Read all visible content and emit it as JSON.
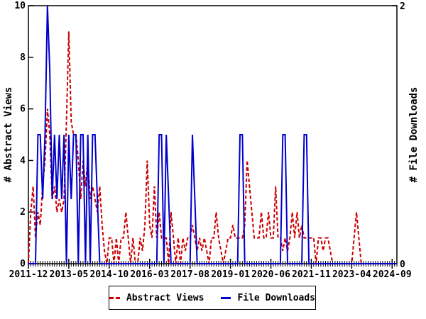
{
  "chart_data": {
    "type": "line",
    "title": "",
    "x_start_month": "2011-12",
    "x_end_month": "2024-12",
    "x_tick_labels": [
      "2011-12",
      "2013-05",
      "2014-10",
      "2016-03",
      "2017-08",
      "2019-01",
      "2020-06",
      "2021-11",
      "2023-04",
      "2024-09"
    ],
    "x_tick_month_indices": [
      0,
      17,
      34,
      51,
      68,
      85,
      102,
      119,
      136,
      153
    ],
    "ylabel_left": "# Abstract Views",
    "ylabel_right": "# File Downloads",
    "ylim_left": [
      0,
      10
    ],
    "ylim_right": [
      0,
      2
    ],
    "y_left_ticks": [
      0,
      2,
      4,
      6,
      8,
      10
    ],
    "y_right_ticks": [
      0,
      2
    ],
    "grid": false,
    "legend_position": "bottom-center",
    "series": [
      {
        "name": "Abstract Views",
        "axis": "left",
        "color": "#cc0000",
        "style": "dashed",
        "values": [
          0,
          2,
          3,
          1,
          2,
          1.5,
          3,
          4,
          6,
          5,
          2.5,
          3,
          2,
          2.5,
          2,
          2.5,
          5.5,
          9,
          5.5,
          5,
          5,
          4,
          2.5,
          4,
          3,
          4,
          2.5,
          3,
          2.5,
          2,
          3,
          1.5,
          0.5,
          0,
          1,
          1,
          0,
          1,
          0,
          1,
          1,
          2,
          1,
          0,
          1,
          0,
          0,
          1,
          0.5,
          1.5,
          4,
          1.5,
          1,
          3,
          1,
          2,
          1,
          1,
          1,
          0,
          2,
          1,
          0,
          1,
          0,
          1,
          0.5,
          1,
          1,
          1.5,
          1,
          0.5,
          1,
          0.5,
          1,
          0.5,
          0,
          1,
          1,
          2,
          1,
          0.5,
          0,
          0.5,
          1,
          1,
          1.5,
          1,
          1,
          1,
          1,
          1.5,
          4,
          3,
          2,
          1,
          1,
          1,
          2,
          1,
          1,
          2,
          1,
          1,
          3,
          1,
          1,
          0.5,
          1,
          0.5,
          1,
          2,
          1,
          2,
          1,
          1.5,
          1,
          1,
          1,
          1,
          1,
          0,
          1,
          1,
          0.5,
          1,
          1,
          0.5,
          0,
          0,
          0,
          0,
          0,
          0,
          0,
          0,
          0,
          1,
          2,
          1,
          0,
          0,
          0,
          0,
          0,
          0,
          0,
          0,
          0,
          0,
          0,
          0,
          0,
          0,
          0,
          0
        ]
      },
      {
        "name": "File Downloads",
        "axis": "right",
        "color": "#0000cc",
        "style": "solid",
        "values": [
          0,
          0,
          0,
          0,
          1,
          1,
          0.5,
          1,
          2,
          1.5,
          0.5,
          1,
          0.5,
          1,
          0.5,
          1,
          0,
          1,
          0.5,
          1,
          1,
          0,
          1,
          1,
          0,
          1,
          0,
          1,
          1,
          0.5,
          0,
          0,
          0,
          0,
          0,
          0,
          0,
          0,
          0,
          0,
          0,
          0,
          0,
          0,
          0,
          0,
          0,
          0,
          0,
          0,
          0,
          0,
          0,
          0,
          0,
          1,
          1,
          0,
          1,
          0.5,
          0,
          0,
          0,
          0,
          0,
          0,
          0,
          0,
          0,
          1,
          0.5,
          0,
          0,
          0,
          0,
          0,
          0,
          0,
          0,
          0,
          0,
          0,
          0,
          0,
          0,
          0,
          0,
          0,
          0,
          1,
          1,
          0,
          0,
          0,
          0,
          0,
          0,
          0,
          0,
          0,
          0,
          0,
          0,
          0,
          0,
          0,
          0,
          1,
          1,
          0,
          0,
          0,
          0,
          0,
          0,
          0,
          1,
          1,
          0,
          0,
          0,
          0,
          0,
          0,
          0,
          0,
          0,
          0,
          0,
          0,
          0,
          0,
          0,
          0,
          0,
          0,
          0,
          0,
          0,
          0,
          0,
          0,
          0,
          0,
          0,
          0,
          0,
          0,
          0,
          0,
          0,
          0,
          0,
          0,
          0,
          0
        ]
      }
    ]
  },
  "colors": {
    "views": "#cc0000",
    "downloads": "#0000cc",
    "axis": "#000000",
    "background": "#ffffff"
  }
}
